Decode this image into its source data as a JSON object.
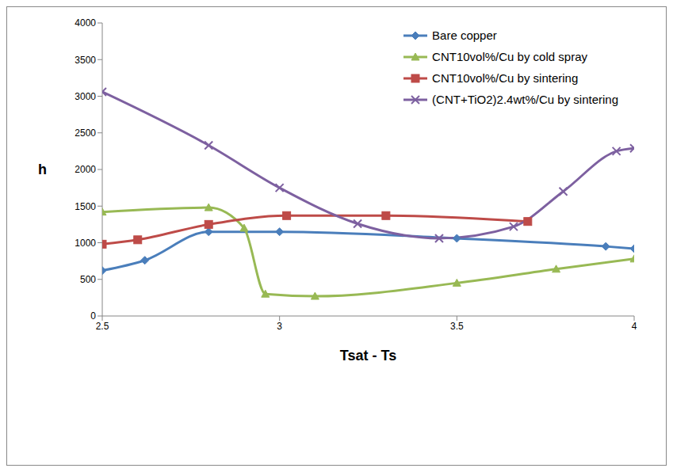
{
  "chart_data": {
    "type": "line",
    "x_label": "Tsat - Ts",
    "y_label": "h",
    "xlim": [
      2.5,
      4
    ],
    "xticks": [
      2.5,
      3,
      3.5,
      4
    ],
    "ylim": [
      0,
      4000
    ],
    "yticks": [
      0,
      500,
      1000,
      1500,
      2000,
      2500,
      3000,
      3500,
      4000
    ],
    "grid": false,
    "legend": "top-right",
    "series": [
      {
        "name": "Bare copper",
        "color": "#4a7ebb",
        "marker": "diamond",
        "line_style": "smooth",
        "x": [
          2.5,
          2.62,
          2.8,
          3.0,
          3.5,
          3.92,
          4.0
        ],
        "values": [
          620,
          760,
          1150,
          1150,
          1060,
          950,
          920
        ]
      },
      {
        "name": "CNT10vol%/Cu by cold spray",
        "color": "#98b954",
        "marker": "triangle",
        "line_style": "smooth",
        "x": [
          2.5,
          2.8,
          2.9,
          2.96,
          3.1,
          3.5,
          3.78,
          4.0
        ],
        "values": [
          1420,
          1480,
          1200,
          300,
          270,
          450,
          640,
          780
        ]
      },
      {
        "name": "CNT10vol%/Cu by sintering",
        "color": "#be4b48",
        "marker": "square",
        "line_style": "smooth",
        "x": [
          2.5,
          2.6,
          2.8,
          3.02,
          3.3,
          3.7
        ],
        "values": [
          980,
          1040,
          1250,
          1370,
          1370,
          1290
        ]
      },
      {
        "name": "(CNT+TiO2)2.4wt%/Cu by sintering",
        "color": "#7d60a0",
        "marker": "x",
        "line_style": "smooth",
        "x": [
          2.5,
          2.8,
          3.0,
          3.22,
          3.45,
          3.66,
          3.8,
          3.95,
          4.0
        ],
        "values": [
          3060,
          2330,
          1750,
          1260,
          1060,
          1220,
          1700,
          2250,
          2290
        ]
      }
    ]
  }
}
